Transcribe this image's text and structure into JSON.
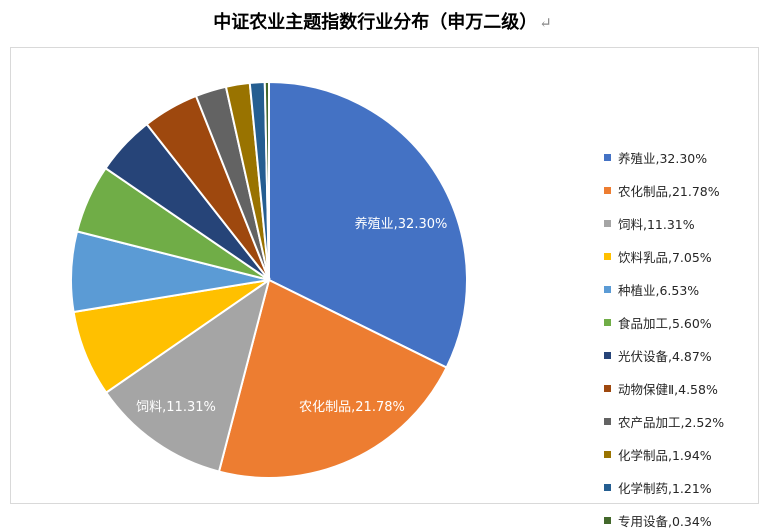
{
  "title": "中证农业主题指数行业分布（申万二级）",
  "return_mark": "↵",
  "chart_data": {
    "type": "pie",
    "title": "中证农业主题指数行业分布（申万二级）",
    "legend_position": "right",
    "slices": [
      {
        "label": "养殖业",
        "value": 32.3,
        "text": "养殖业,32.30%",
        "color": "#4472C4",
        "show_label": true
      },
      {
        "label": "农化制品",
        "value": 21.78,
        "text": "农化制品,21.78%",
        "color": "#ED7D31",
        "show_label": true
      },
      {
        "label": "饲料",
        "value": 11.31,
        "text": "饲料,11.31%",
        "color": "#A5A5A5",
        "show_label": true
      },
      {
        "label": "饮料乳品",
        "value": 7.05,
        "text": "饮料乳品,7.05%",
        "color": "#FFC000",
        "show_label": false
      },
      {
        "label": "种植业",
        "value": 6.53,
        "text": "种植业,6.53%",
        "color": "#5B9BD5",
        "show_label": false
      },
      {
        "label": "食品加工",
        "value": 5.6,
        "text": "食品加工,5.60%",
        "color": "#70AD47",
        "show_label": false
      },
      {
        "label": "光伏设备",
        "value": 4.87,
        "text": "光伏设备,4.87%",
        "color": "#264478",
        "show_label": false
      },
      {
        "label": "动物保健Ⅱ",
        "value": 4.58,
        "text": "动物保健Ⅱ,4.58%",
        "color": "#9E480E",
        "show_label": false
      },
      {
        "label": "农产品加工",
        "value": 2.52,
        "text": "农产品加工,2.52%",
        "color": "#636363",
        "show_label": false
      },
      {
        "label": "化学制品",
        "value": 1.94,
        "text": "化学制品,1.94%",
        "color": "#997300",
        "show_label": false
      },
      {
        "label": "化学制药",
        "value": 1.21,
        "text": "化学制药,1.21%",
        "color": "#255E91",
        "show_label": false
      },
      {
        "label": "专用设备",
        "value": 0.34,
        "text": "专用设备,0.34%",
        "color": "#43682B",
        "show_label": false
      }
    ]
  }
}
